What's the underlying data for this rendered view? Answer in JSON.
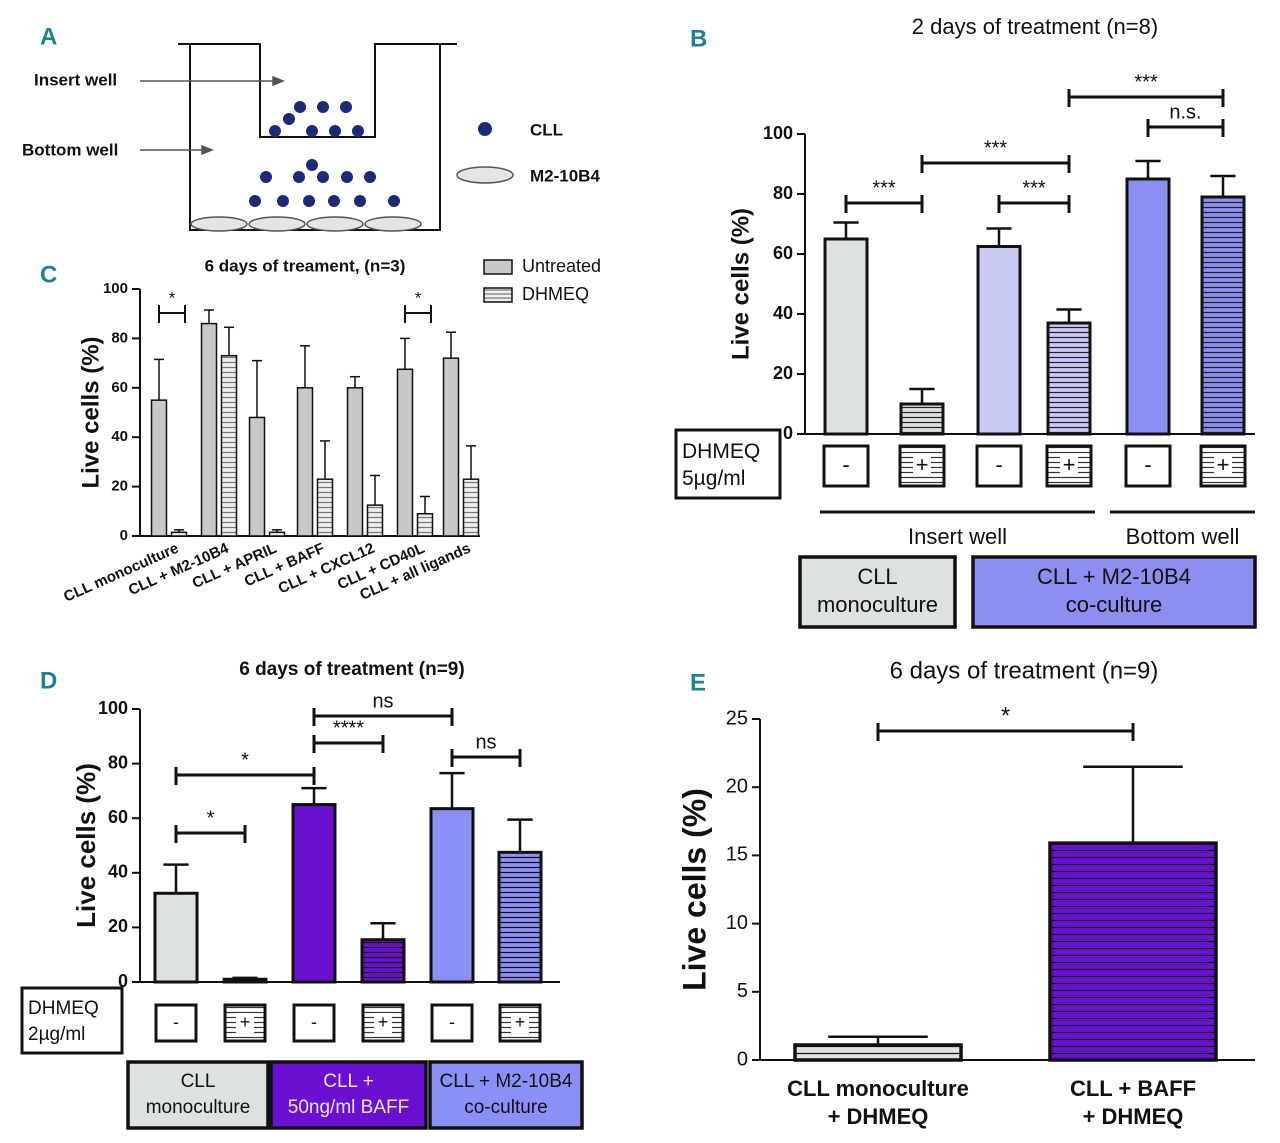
{
  "diagram": {
    "label": "A",
    "labels": [
      "Insert well",
      "Bottom well",
      "CLL",
      "M2-10B4"
    ]
  },
  "chart_data": [
    {
      "type": "bar",
      "label": "B",
      "title": "2 days of treatment (n=8)",
      "y_label": "Live cells (%)",
      "ylim": [
        0,
        100
      ],
      "yticks": [
        0,
        20,
        40,
        60,
        80,
        100
      ],
      "categories": [
        "-",
        "+",
        "-",
        "+",
        "-",
        "+"
      ],
      "values": [
        65,
        10,
        62.5,
        37,
        85,
        79
      ],
      "errors": [
        5.5,
        5,
        6,
        4.5,
        6,
        7
      ],
      "colors": [
        "#dde1df",
        "#dde1df",
        "#c9c9f6",
        "#c9c9f6",
        "#8c8ef0",
        "#8c8ef0"
      ],
      "hatched": [
        false,
        true,
        false,
        true,
        false,
        true
      ],
      "treatment_label": [
        "DHMEQ",
        "5µg/ml"
      ],
      "groups": [
        {
          "name": "Insert well",
          "from": 0,
          "to": 3
        },
        {
          "name": "Bottom well",
          "from": 4,
          "to": 5
        }
      ],
      "boxes": [
        {
          "name": [
            "CLL",
            "monoculture"
          ],
          "color": "#dde1df"
        },
        {
          "name": [
            "CLL + M2-10B4",
            "co-culture"
          ],
          "color": "#8c8ef0"
        }
      ],
      "annotations": [
        {
          "text": "***",
          "from": 0,
          "to": 1
        },
        {
          "text": "***",
          "from": 1,
          "to": 3
        },
        {
          "text": "***",
          "from": 2,
          "to": 3
        },
        {
          "text": "***",
          "from": 3,
          "to": 5
        },
        {
          "text": "n.s.",
          "from": 4,
          "to": 5
        }
      ]
    },
    {
      "type": "grouped_bar",
      "label": "C",
      "title": "6 days of treament, (n=3)",
      "y_label": "Live cells (%)",
      "ylim": [
        0,
        100
      ],
      "yticks": [
        0,
        20,
        40,
        60,
        80,
        100
      ],
      "categories": [
        "CLL monoculture",
        "CLL + M2-10B4",
        "CLL + APRIL",
        "CLL + BAFF",
        "CLL + CXCL12",
        "CLL + CD40L",
        "CLL + all ligands"
      ],
      "series": [
        {
          "name": "Untreated",
          "color": "#c6c9c7",
          "hatched": false,
          "values": [
            55,
            86,
            48,
            60,
            60,
            67.5,
            72
          ],
          "errors": [
            16.5,
            5.5,
            23,
            17,
            4.5,
            12.5,
            10.5
          ]
        },
        {
          "name": "DHMEQ",
          "color": "#eeeeee",
          "hatched": true,
          "values": [
            1.5,
            73,
            1.5,
            23,
            12.5,
            9,
            23
          ],
          "errors": [
            1,
            11.5,
            1,
            15.5,
            12,
            7,
            13.5
          ]
        }
      ],
      "annotations": [
        {
          "text": "*",
          "category": 0
        },
        {
          "text": "*",
          "category": 5
        }
      ]
    },
    {
      "type": "bar",
      "label": "D",
      "title": "6 days of treatment (n=9)",
      "y_label": "Live cells (%)",
      "ylim": [
        0,
        100
      ],
      "yticks": [
        0,
        20,
        40,
        60,
        80,
        100
      ],
      "categories": [
        "-",
        "+",
        "-",
        "+",
        "-",
        "+"
      ],
      "values": [
        32.5,
        1,
        65,
        15.5,
        63.5,
        47.5
      ],
      "errors": [
        10.5,
        0.5,
        6,
        6,
        13,
        12
      ],
      "colors": [
        "#dde1df",
        "#dde1df",
        "#6a10d0",
        "#6a10d0",
        "#8a90f8",
        "#8a90f8"
      ],
      "hatched": [
        false,
        true,
        false,
        true,
        false,
        true
      ],
      "treatment_label": [
        "DHMEQ",
        "2µg/ml"
      ],
      "boxes": [
        {
          "name": [
            "CLL",
            "monoculture"
          ],
          "color": "#dde1df"
        },
        {
          "name": [
            "CLL +",
            "50ng/ml BAFF"
          ],
          "color": "#6a10d0"
        },
        {
          "name": [
            "CLL + M2-10B4",
            "co-culture"
          ],
          "color": "#8a90f8"
        }
      ],
      "annotations": [
        {
          "text": "*",
          "from": 0,
          "to": 2
        },
        {
          "text": "*",
          "from": 0,
          "to": 1
        },
        {
          "text": "****",
          "from": 2,
          "to": 3
        },
        {
          "text": "ns",
          "from": 2,
          "to": 4
        },
        {
          "text": "ns",
          "from": 4,
          "to": 5
        }
      ]
    },
    {
      "type": "bar",
      "label": "E",
      "title": "6 days of treatment (n=9)",
      "y_label": "Live cells (%)",
      "ylim": [
        0,
        25
      ],
      "yticks": [
        0,
        5,
        10,
        15,
        20,
        25
      ],
      "categories": [
        [
          "CLL monoculture",
          "+ DHMEQ"
        ],
        [
          "CLL + BAFF",
          "+ DHMEQ"
        ]
      ],
      "values": [
        1.1,
        15.9
      ],
      "errors": [
        0.6,
        5.6
      ],
      "colors": [
        "#dde1df",
        "#6a10d0"
      ],
      "hatched": [
        true,
        true
      ],
      "annotations": [
        {
          "text": "*",
          "from": 0,
          "to": 1
        }
      ]
    }
  ]
}
